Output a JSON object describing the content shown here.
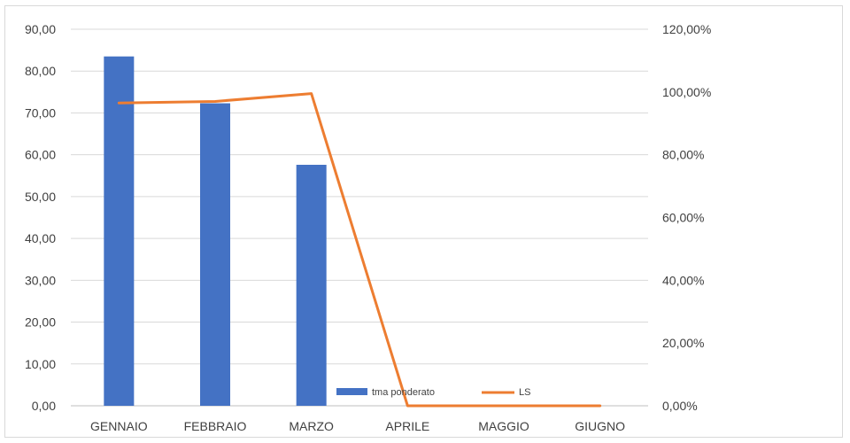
{
  "chart_data": {
    "type": "bar",
    "categories": [
      "GENNAIO",
      "FEBBRAIO",
      "MARZO",
      "APRILE",
      "MAGGIO",
      "GIUGNO"
    ],
    "series": [
      {
        "name": "tma ponderato",
        "type": "bar",
        "axis": "left",
        "color": "#4472C4",
        "values": [
          83.5,
          72.3,
          57.6,
          0,
          0,
          0
        ]
      },
      {
        "name": "LS",
        "type": "line",
        "axis": "right",
        "color": "#ED7D31",
        "values": [
          0.965,
          0.97,
          0.995,
          0,
          0,
          0
        ]
      }
    ],
    "y_left": {
      "min": 0,
      "max": 90,
      "step": 10,
      "tick_labels": [
        "0,00",
        "10,00",
        "20,00",
        "30,00",
        "40,00",
        "50,00",
        "60,00",
        "70,00",
        "80,00",
        "90,00"
      ]
    },
    "y_right": {
      "min": 0,
      "max": 1.2,
      "step": 0.2,
      "tick_labels": [
        "0,00%",
        "20,00%",
        "40,00%",
        "60,00%",
        "80,00%",
        "100,00%",
        "120,00%"
      ]
    },
    "grid": true,
    "legend": "bottom-right-inside",
    "title": "",
    "xlabel": "",
    "ylabel": ""
  }
}
